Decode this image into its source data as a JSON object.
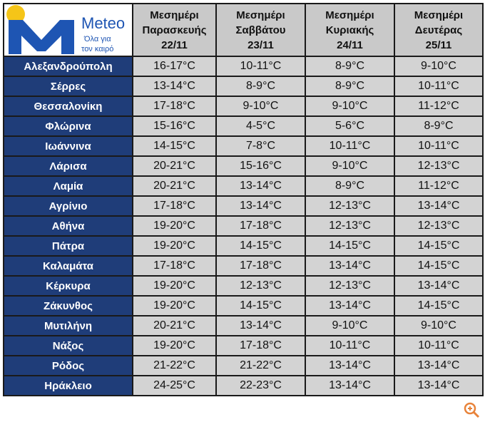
{
  "logo": {
    "name": "Meteo",
    "tagline": [
      "Όλα για",
      "τον καιρό"
    ]
  },
  "table": {
    "columns": [
      [
        "Μεσημέρι",
        "Παρασκευής",
        "22/11"
      ],
      [
        "Μεσημέρι",
        "Σαββάτου",
        "23/11"
      ],
      [
        "Μεσημέρι",
        "Κυριακής",
        "24/11"
      ],
      [
        "Μεσημέρι",
        "Δευτέρας",
        "25/11"
      ]
    ],
    "rows": [
      {
        "city": "Αλεξανδρούπολη",
        "values": [
          "16-17°C",
          "10-11°C",
          "8-9°C",
          "9-10°C"
        ]
      },
      {
        "city": "Σέρρες",
        "values": [
          "13-14°C",
          "8-9°C",
          "8-9°C",
          "10-11°C"
        ]
      },
      {
        "city": "Θεσσαλονίκη",
        "values": [
          "17-18°C",
          "9-10°C",
          "9-10°C",
          "11-12°C"
        ]
      },
      {
        "city": "Φλώρινα",
        "values": [
          "15-16°C",
          "4-5°C",
          "5-6°C",
          "8-9°C"
        ]
      },
      {
        "city": "Ιωάννινα",
        "values": [
          "14-15°C",
          "7-8°C",
          "10-11°C",
          "10-11°C"
        ]
      },
      {
        "city": "Λάρισα",
        "values": [
          "20-21°C",
          "15-16°C",
          "9-10°C",
          "12-13°C"
        ]
      },
      {
        "city": "Λαμία",
        "values": [
          "20-21°C",
          "13-14°C",
          "8-9°C",
          "11-12°C"
        ]
      },
      {
        "city": "Αγρίνιο",
        "values": [
          "17-18°C",
          "13-14°C",
          "12-13°C",
          "13-14°C"
        ]
      },
      {
        "city": "Αθήνα",
        "values": [
          "19-20°C",
          "17-18°C",
          "12-13°C",
          "12-13°C"
        ]
      },
      {
        "city": "Πάτρα",
        "values": [
          "19-20°C",
          "14-15°C",
          "14-15°C",
          "14-15°C"
        ]
      },
      {
        "city": "Καλαμάτα",
        "values": [
          "17-18°C",
          "17-18°C",
          "13-14°C",
          "14-15°C"
        ]
      },
      {
        "city": "Κέρκυρα",
        "values": [
          "19-20°C",
          "12-13°C",
          "12-13°C",
          "13-14°C"
        ]
      },
      {
        "city": "Ζάκυνθος",
        "values": [
          "19-20°C",
          "14-15°C",
          "13-14°C",
          "14-15°C"
        ]
      },
      {
        "city": "Μυτιλήνη",
        "values": [
          "20-21°C",
          "13-14°C",
          "9-10°C",
          "9-10°C"
        ]
      },
      {
        "city": "Νάξος",
        "values": [
          "19-20°C",
          "17-18°C",
          "10-11°C",
          "10-11°C"
        ]
      },
      {
        "city": "Ρόδος",
        "values": [
          "21-22°C",
          "21-22°C",
          "13-14°C",
          "13-14°C"
        ]
      },
      {
        "city": "Ηράκλειο",
        "values": [
          "24-25°C",
          "22-23°C",
          "13-14°C",
          "13-14°C"
        ]
      }
    ]
  }
}
